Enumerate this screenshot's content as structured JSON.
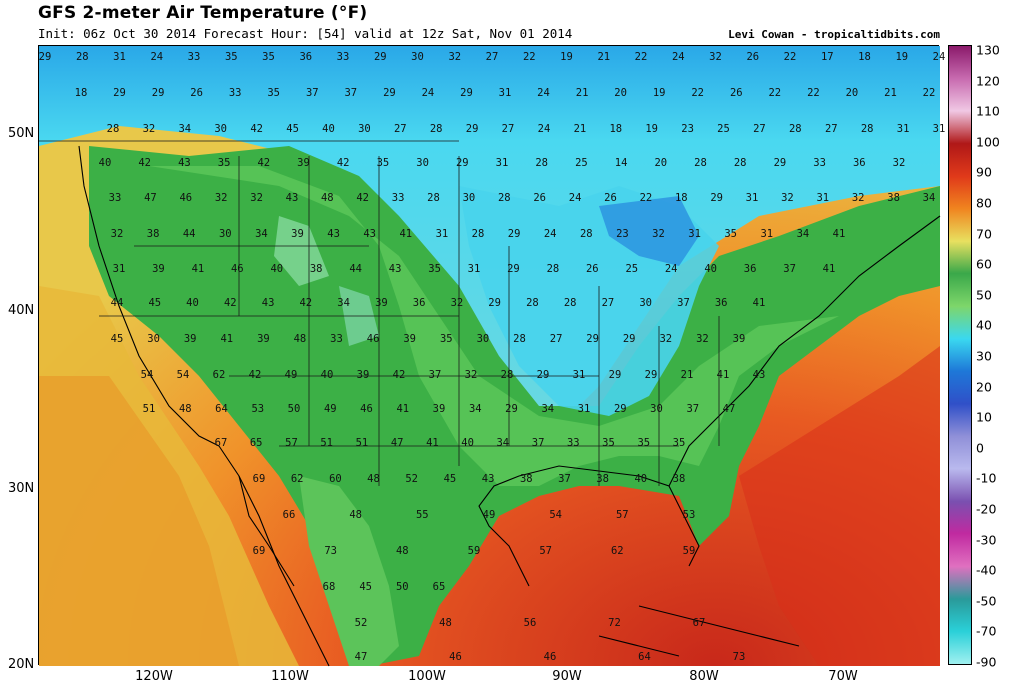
{
  "header": {
    "title": "GFS 2-meter Air Temperature (°F)",
    "subtitle": "Init: 06z Oct 30 2014 Forecast Hour: [54] valid at 12z Sat, Nov 01 2014",
    "credit": "Levi Cowan - tropicaltidbits.com"
  },
  "axes": {
    "lat_labels": [
      "50N",
      "40N",
      "30N",
      "20N"
    ],
    "lon_labels": [
      "120W",
      "110W",
      "100W",
      "90W",
      "80W",
      "70W"
    ]
  },
  "colorbar": {
    "labels": [
      "130",
      "120",
      "110",
      "100",
      "90",
      "80",
      "70",
      "60",
      "50",
      "40",
      "30",
      "20",
      "10",
      "0",
      "-10",
      "-20",
      "-30",
      "-40",
      "-50",
      "-70",
      "-90"
    ],
    "stops": [
      "#8b1a6b",
      "#c86bb0",
      "#f0c8e4",
      "#b01818",
      "#e03a1a",
      "#f0841f",
      "#e8e060",
      "#3aa84a",
      "#7ed66a",
      "#3ad8f0",
      "#1e78d8",
      "#3050c8",
      "#9090d8",
      "#b9b9ee",
      "#7a50b0",
      "#c02aa0",
      "#e070c0",
      "#2a9a9a",
      "#2ad0d8",
      "#a0f0f0"
    ]
  },
  "stations": [
    [
      "29",
      "28",
      "31",
      "24",
      "33",
      "35",
      "35",
      "36",
      "33",
      "29",
      "30",
      "32",
      "27",
      "22",
      "19",
      "21",
      "22",
      "24",
      "32",
      "26",
      "22",
      "17",
      "18",
      "19",
      "24"
    ],
    [
      "18",
      "29",
      "29",
      "26",
      "33",
      "35",
      "37",
      "37",
      "29",
      "24",
      "29",
      "31",
      "24",
      "21",
      "20",
      "19",
      "22",
      "26",
      "22",
      "22",
      "20",
      "21",
      "22"
    ],
    [
      "28",
      "32",
      "34",
      "30",
      "42",
      "45",
      "40",
      "30",
      "27",
      "28",
      "29",
      "27",
      "24",
      "21",
      "18",
      "19",
      "23",
      "25",
      "27",
      "28",
      "27",
      "28",
      "31",
      "31"
    ],
    [
      "40",
      "42",
      "43",
      "35",
      "42",
      "39",
      "42",
      "35",
      "30",
      "29",
      "31",
      "28",
      "25",
      "14",
      "20",
      "28",
      "28",
      "29",
      "33",
      "36",
      "32"
    ],
    [
      "33",
      "47",
      "46",
      "32",
      "32",
      "43",
      "48",
      "42",
      "33",
      "28",
      "30",
      "28",
      "26",
      "24",
      "26",
      "22",
      "18",
      "29",
      "31",
      "32",
      "31",
      "32",
      "38",
      "34"
    ],
    [
      "32",
      "38",
      "44",
      "30",
      "34",
      "39",
      "43",
      "43",
      "41",
      "31",
      "28",
      "29",
      "24",
      "28",
      "23",
      "32",
      "31",
      "35",
      "31",
      "34",
      "41"
    ],
    [
      "31",
      "39",
      "41",
      "46",
      "40",
      "38",
      "44",
      "43",
      "35",
      "31",
      "29",
      "28",
      "26",
      "25",
      "24",
      "40",
      "36",
      "37",
      "41"
    ],
    [
      "44",
      "45",
      "40",
      "42",
      "43",
      "42",
      "34",
      "39",
      "36",
      "32",
      "29",
      "28",
      "28",
      "27",
      "30",
      "37",
      "36",
      "41"
    ],
    [
      "45",
      "30",
      "39",
      "41",
      "39",
      "48",
      "33",
      "46",
      "39",
      "35",
      "30",
      "28",
      "27",
      "29",
      "29",
      "32",
      "32",
      "39"
    ],
    [
      "54",
      "54",
      "62",
      "42",
      "49",
      "40",
      "39",
      "42",
      "37",
      "32",
      "28",
      "29",
      "31",
      "29",
      "29",
      "21",
      "41",
      "43"
    ],
    [
      "51",
      "48",
      "64",
      "53",
      "50",
      "49",
      "46",
      "41",
      "39",
      "34",
      "29",
      "34",
      "31",
      "29",
      "30",
      "37",
      "47"
    ],
    [
      "67",
      "65",
      "57",
      "51",
      "51",
      "47",
      "41",
      "40",
      "34",
      "37",
      "33",
      "35",
      "35",
      "35"
    ],
    [
      "69",
      "62",
      "60",
      "48",
      "52",
      "45",
      "43",
      "38",
      "37",
      "38",
      "40",
      "38"
    ],
    [
      "66",
      "48",
      "55",
      "49",
      "54",
      "57",
      "53"
    ],
    [
      "69",
      "73",
      "48",
      "59",
      "57",
      "62",
      "59"
    ],
    [
      "68",
      "45",
      "50",
      "65"
    ],
    [
      "52",
      "48",
      "56",
      "72",
      "67"
    ],
    [
      "47",
      "46",
      "46",
      "64",
      "73"
    ]
  ]
}
